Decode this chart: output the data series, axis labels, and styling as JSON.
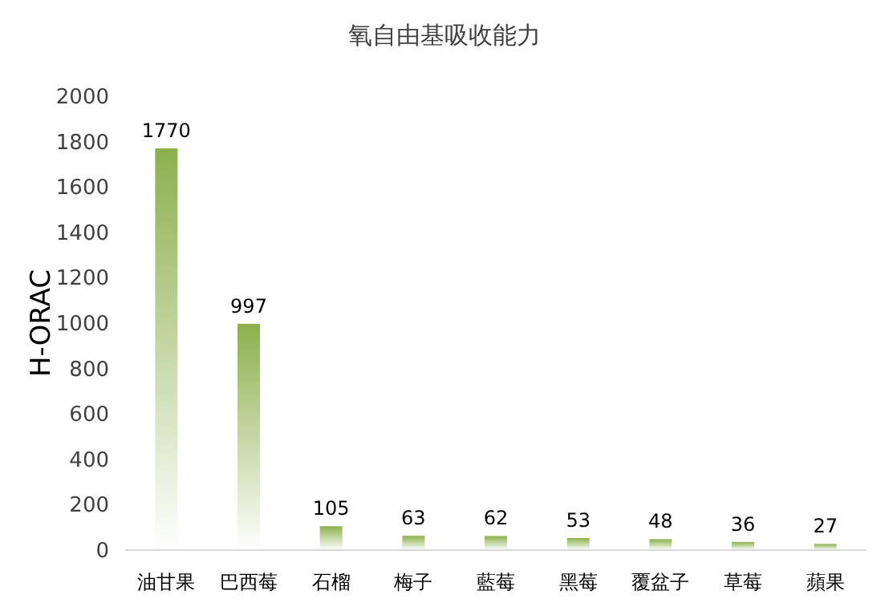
{
  "chart_data": {
    "type": "bar",
    "title": "氧自由基吸收能力",
    "ylabel": "H-ORAC",
    "categories": [
      "油甘果",
      "巴西莓",
      "石榴",
      "梅子",
      "藍莓",
      "黑莓",
      "覆盆子",
      "草莓",
      "蘋果"
    ],
    "values": [
      1770,
      997,
      105,
      63,
      62,
      53,
      48,
      36,
      27
    ],
    "color": "#8cb04c",
    "ylim": [
      0,
      2000
    ],
    "yticks": [
      0,
      200,
      400,
      600,
      800,
      1000,
      1200,
      1400,
      1600,
      1800,
      2000
    ],
    "data_labels": true
  }
}
